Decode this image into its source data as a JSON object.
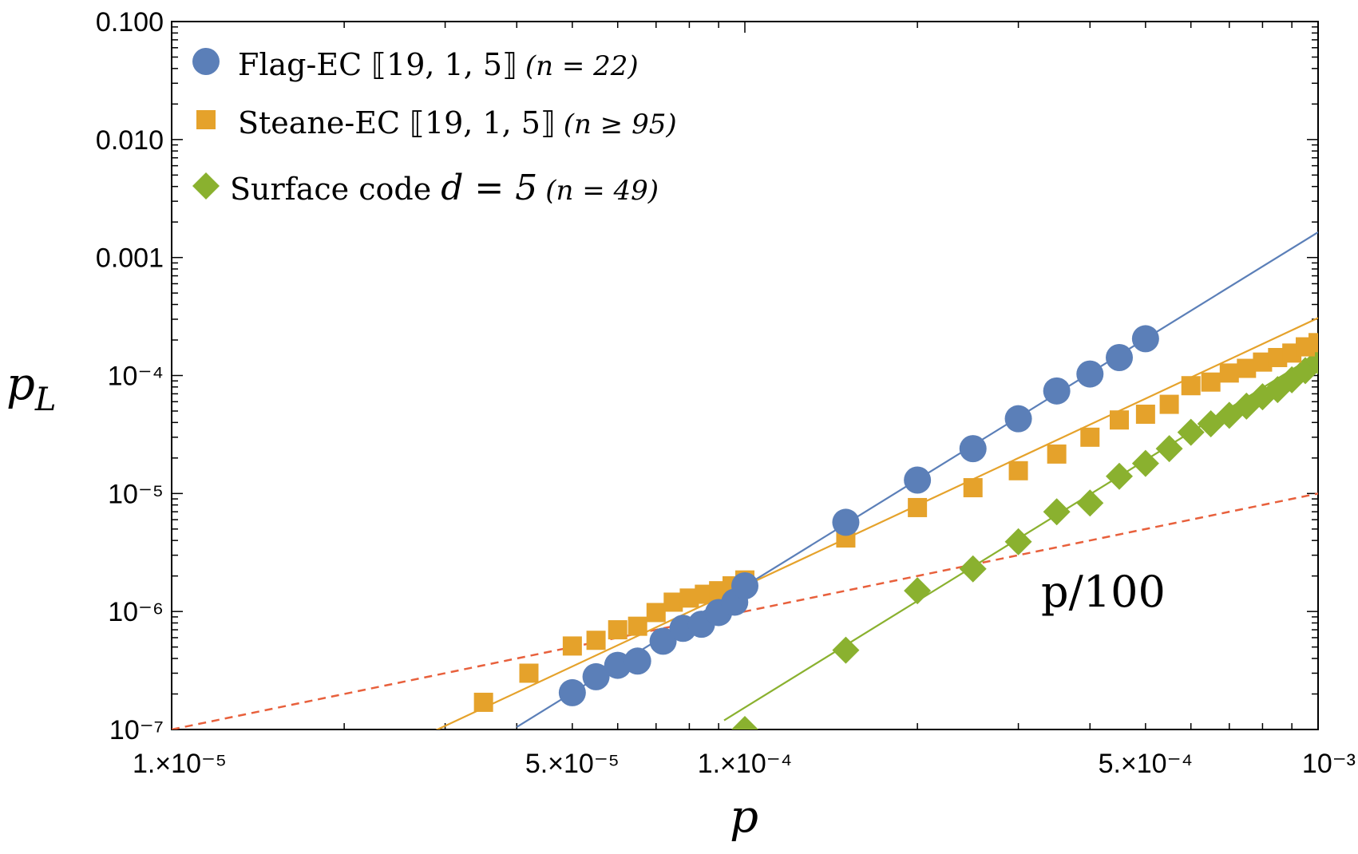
{
  "chart_data": {
    "type": "scatter",
    "xscale": "log",
    "yscale": "log",
    "xlabel": "p",
    "ylabel": "p_L",
    "xlim": [
      1e-05,
      0.001
    ],
    "ylim": [
      1e-07,
      0.1
    ],
    "x_ticks": [
      {
        "value": 1e-05,
        "label": "1.×10⁻⁵"
      },
      {
        "value": 5e-05,
        "label": "5.×10⁻⁵"
      },
      {
        "value": 0.0001,
        "label": "1.×10⁻⁴"
      },
      {
        "value": 0.0005,
        "label": "5.×10⁻⁴"
      },
      {
        "value": 0.001,
        "label": "10⁻³"
      }
    ],
    "y_ticks": [
      {
        "value": 0.1,
        "label": "0.100"
      },
      {
        "value": 0.01,
        "label": "0.010"
      },
      {
        "value": 0.001,
        "label": "0.001"
      },
      {
        "value": 0.0001,
        "label": "10⁻⁴"
      },
      {
        "value": 1e-05,
        "label": "10⁻⁵"
      },
      {
        "value": 1e-06,
        "label": "10⁻⁶"
      },
      {
        "value": 1e-07,
        "label": "10⁻⁷"
      }
    ],
    "series": [
      {
        "name": "Flag-EC ⟦19, 1, 5⟧ (n = 22)",
        "label_main": "Flag-EC ⟦19, 1, 5⟧",
        "label_sub": "(n = 22)",
        "marker": "circle",
        "color": "#5B7FB8",
        "fit": {
          "slope": 3.0,
          "point": [
            0.0005,
            0.000205
          ],
          "x_range": [
            4e-05,
            0.001
          ]
        },
        "x": [
          5e-05,
          5.5e-05,
          6e-05,
          6.5e-05,
          7.2e-05,
          7.8e-05,
          8.4e-05,
          9e-05,
          9.6e-05,
          0.0001,
          0.00015,
          0.0002,
          0.00025,
          0.0003,
          0.00035,
          0.0004,
          0.00045,
          0.0005
        ],
        "y": [
          2.05e-07,
          2.8e-07,
          3.5e-07,
          3.8e-07,
          5.6e-07,
          7.2e-07,
          7.8e-07,
          9.8e-07,
          1.2e-06,
          1.65e-06,
          5.7e-06,
          1.3e-05,
          2.4e-05,
          4.3e-05,
          7.4e-05,
          0.000103,
          0.000142,
          0.000205
        ]
      },
      {
        "name": "Steane-EC ⟦19, 1, 5⟧ (n ≥ 95)",
        "label_main": "Steane-EC ⟦19, 1, 5⟧",
        "label_sub": "(n ≥ 95)",
        "marker": "square",
        "color": "#E5A22B",
        "fit": {
          "slope": 2.27,
          "point": [
            0.0001,
            1.65e-06
          ],
          "x_range": [
            2.75e-05,
            0.001
          ]
        },
        "x": [
          3.5e-05,
          4.2e-05,
          5e-05,
          5.5e-05,
          6e-05,
          6.5e-05,
          7e-05,
          7.5e-05,
          8e-05,
          8.5e-05,
          9e-05,
          9.5e-05,
          0.0001,
          0.00015,
          0.0002,
          0.00025,
          0.0003,
          0.00035,
          0.0004,
          0.00045,
          0.0005,
          0.00055,
          0.0006,
          0.00065,
          0.0007,
          0.00075,
          0.0008,
          0.00085,
          0.0009,
          0.00095,
          0.001
        ],
        "y": [
          1.7e-07,
          3e-07,
          5.1e-07,
          5.7e-07,
          7e-07,
          7.5e-07,
          9.8e-07,
          1.2e-06,
          1.3e-06,
          1.4e-06,
          1.5e-06,
          1.65e-06,
          1.85e-06,
          4.2e-06,
          7.6e-06,
          1.12e-05,
          1.56e-05,
          2.16e-05,
          3e-05,
          4.2e-05,
          4.7e-05,
          5.7e-05,
          8.2e-05,
          8.8e-05,
          0.000105,
          0.000115,
          0.00013,
          0.000142,
          0.000155,
          0.000175,
          0.00019
        ]
      },
      {
        "name": "Surface code d = 5 (n = 49)",
        "label_main": "Surface code",
        "label_d": "d = 5",
        "label_sub": "(n = 49)",
        "marker": "diamond",
        "color": "#8AB12F",
        "fit": {
          "slope": 3.0,
          "point": [
            0.00025,
            2.4e-06
          ],
          "x_range": [
            9.2e-05,
            0.001
          ]
        },
        "x": [
          0.0001,
          0.00015,
          0.0002,
          0.00025,
          0.0003,
          0.00035,
          0.0004,
          0.00045,
          0.0005,
          0.00055,
          0.0006,
          0.00065,
          0.0007,
          0.00075,
          0.0008,
          0.00085,
          0.0009,
          0.00095,
          0.001
        ],
        "y": [
          1e-07,
          4.7e-07,
          1.5e-06,
          2.3e-06,
          3.9e-06,
          7e-06,
          8.3e-06,
          1.4e-05,
          1.8e-05,
          2.4e-05,
          3.3e-05,
          3.9e-05,
          4.6e-05,
          5.5e-05,
          6.6e-05,
          7.6e-05,
          9.2e-05,
          0.00011,
          0.000133
        ]
      }
    ],
    "reference_line": {
      "label": "p/100",
      "color": "#E8603C",
      "style": "dashed",
      "factor": 0.01,
      "label_anchor": [
        0.00045,
        1.5e-06
      ]
    }
  }
}
